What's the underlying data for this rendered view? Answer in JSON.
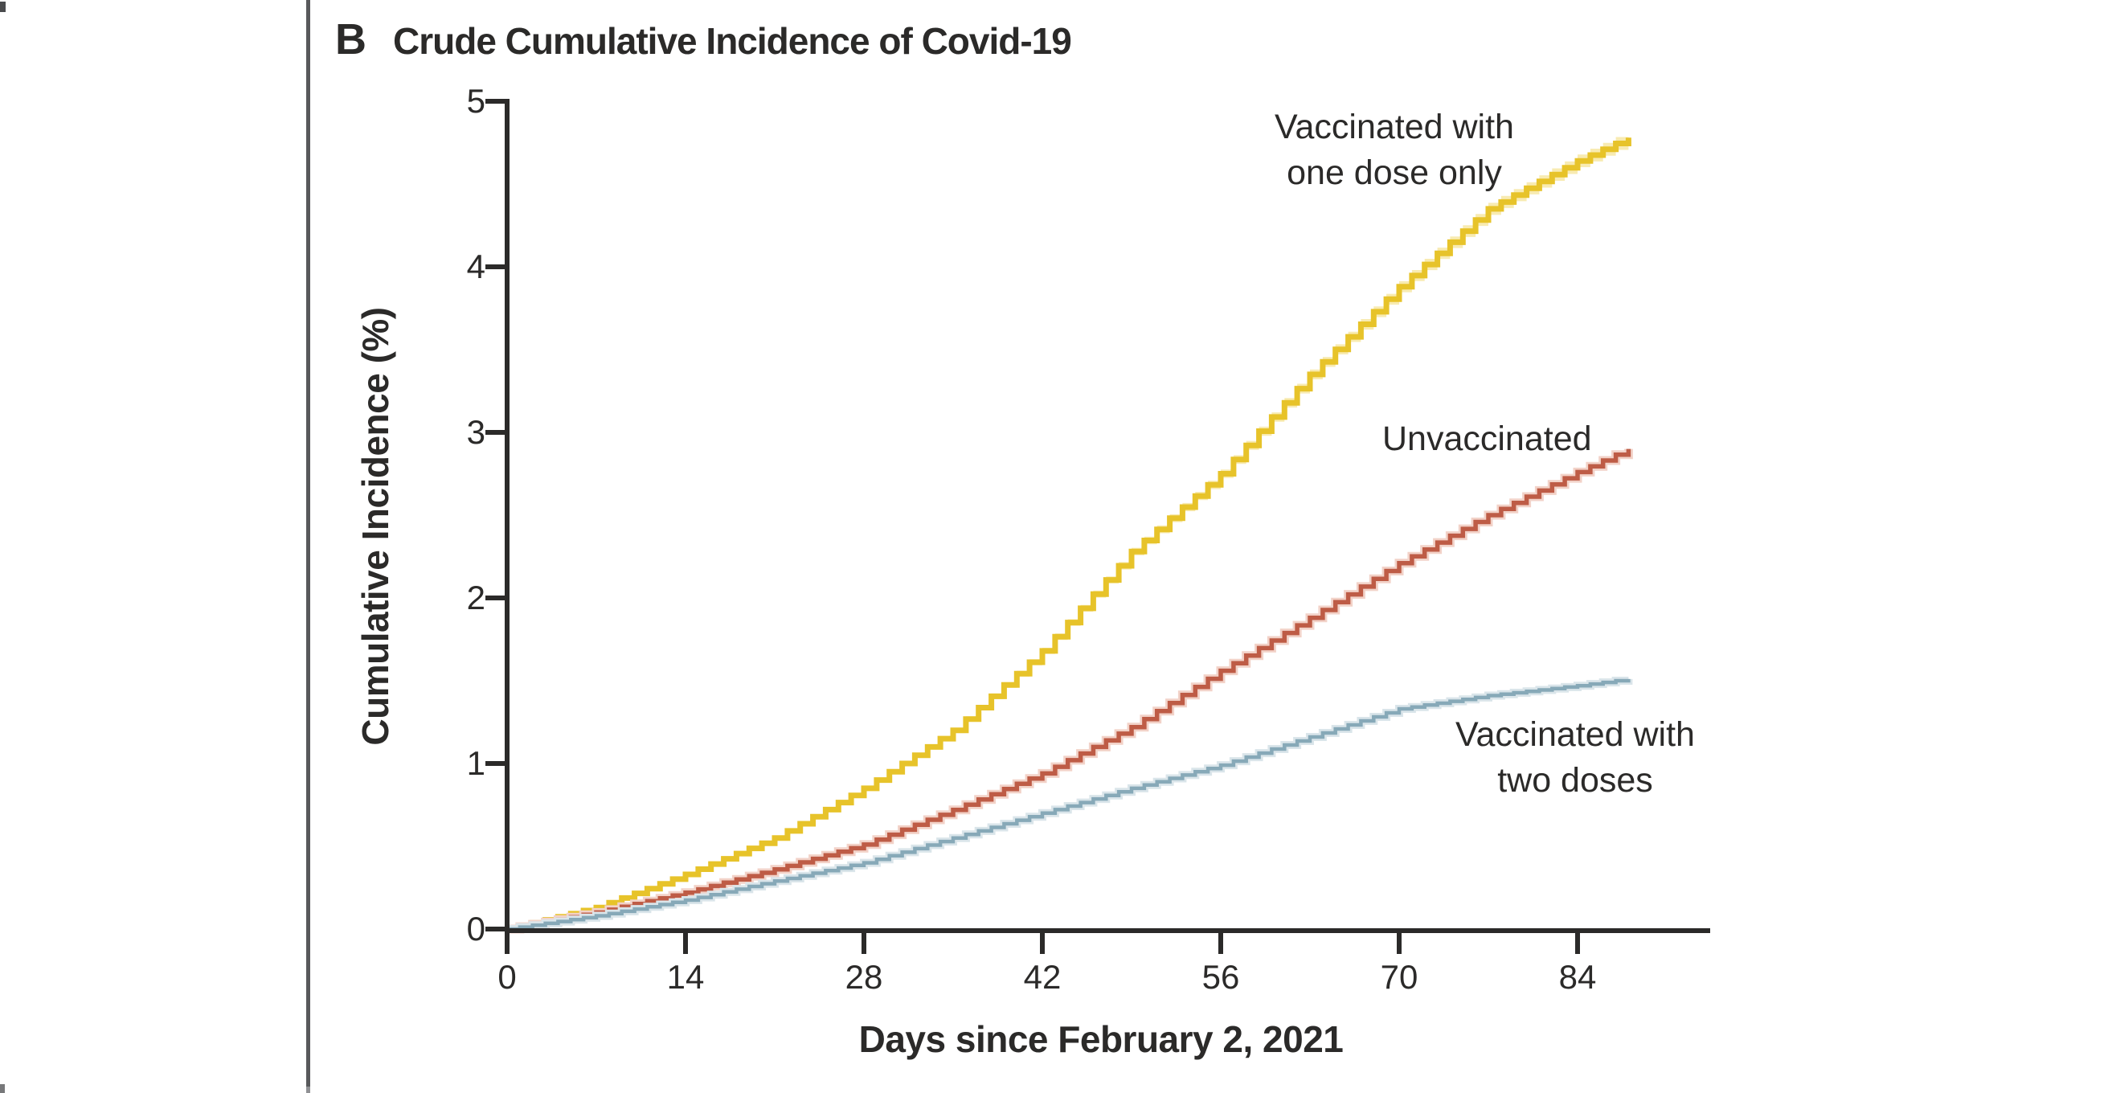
{
  "panel": {
    "label": "B",
    "title": "Crude Cumulative Incidence of Covid-19"
  },
  "colors": {
    "background": "#FFFFFF",
    "axis_and_text": "#2B2A29",
    "panel_divider": "#58595B",
    "one_dose_line": "#E7C32A",
    "one_dose_band": "#F8EBB2",
    "unvaccinated_line": "#BE5C46",
    "unvaccinated_halo": "#F2D2C8",
    "two_doses_line": "#87A9B8",
    "two_doses_halo": "#DAE5EA"
  },
  "chart_data": {
    "type": "line",
    "style": "cumulative-incidence-step",
    "title": "Crude Cumulative Incidence of Covid-19",
    "xlabel": "Days since February 2, 2021",
    "ylabel": "Cumulative Incidence (%)",
    "xlim": [
      0,
      94
    ],
    "ylim": [
      0,
      5
    ],
    "x_ticks": [
      0,
      14,
      28,
      42,
      56,
      70,
      84
    ],
    "y_ticks": [
      0,
      1,
      2,
      3,
      4,
      5
    ],
    "grid": false,
    "legend": "direct-curve-labels",
    "series": [
      {
        "name": "Vaccinated with one dose only",
        "color": "#E7C32A",
        "has_confidence_band": true,
        "band_color": "#F8EBB2",
        "x": [
          0,
          7,
          14,
          21,
          28,
          35,
          42,
          49,
          56,
          63,
          70,
          77,
          84,
          88
        ],
        "y": [
          0,
          0.13,
          0.33,
          0.55,
          0.85,
          1.2,
          1.68,
          2.28,
          2.75,
          3.35,
          3.88,
          4.35,
          4.64,
          4.78
        ]
      },
      {
        "name": "Unvaccinated",
        "color": "#BE5C46",
        "has_confidence_band": false,
        "x": [
          0,
          7,
          14,
          21,
          28,
          35,
          42,
          49,
          56,
          63,
          70,
          77,
          84,
          88
        ],
        "y": [
          0,
          0.1,
          0.22,
          0.36,
          0.51,
          0.72,
          0.94,
          1.22,
          1.56,
          1.88,
          2.21,
          2.5,
          2.76,
          2.9
        ]
      },
      {
        "name": "Vaccinated with two doses",
        "color": "#87A9B8",
        "has_confidence_band": false,
        "x": [
          0,
          7,
          14,
          21,
          28,
          35,
          42,
          49,
          56,
          63,
          70,
          77,
          84,
          88
        ],
        "y": [
          0,
          0.08,
          0.175,
          0.29,
          0.4,
          0.55,
          0.7,
          0.85,
          0.99,
          1.16,
          1.33,
          1.41,
          1.47,
          1.51
        ]
      }
    ]
  },
  "curve_labels": {
    "one_dose": {
      "line1": "Vaccinated with",
      "line2": "one dose only"
    },
    "unvaccinated": {
      "line1": "Unvaccinated"
    },
    "two_doses": {
      "line1": "Vaccinated with",
      "line2": "two doses"
    }
  }
}
